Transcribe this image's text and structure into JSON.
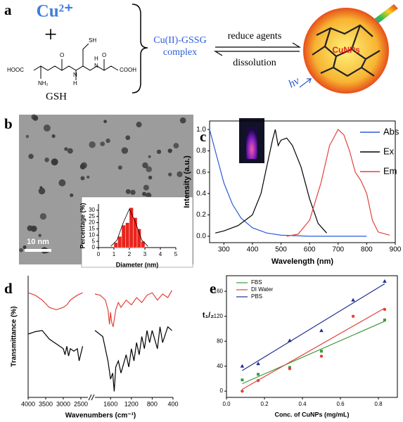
{
  "panel_a": {
    "label": "a",
    "cu": "Cu²⁺",
    "plus": "+",
    "structure_labels": [
      "HOOC",
      "NH₂",
      "SH",
      "O",
      "N",
      "H",
      "H",
      "N",
      "O",
      "COOH"
    ],
    "gsh": "GSH",
    "complex": [
      "Cu(II)-GSSG",
      "complex"
    ],
    "forward": "reduce agents",
    "reverse": "dissolution",
    "particle": "CuNPs",
    "light": "hv"
  },
  "panel_b": {
    "label": "b",
    "scale_bar": "10 nm"
  },
  "chart_data": [
    {
      "type": "histogram",
      "xlabel": "Diameter (nm)",
      "ylabel": "Percentage (%)",
      "bins": [
        1.0,
        1.25,
        1.5,
        1.75,
        2.0,
        2.25,
        2.5,
        2.75,
        3.0
      ],
      "values": [
        4,
        9,
        18,
        20,
        32,
        24,
        15,
        5
      ],
      "color": "#e8241c",
      "fit": {
        "x": [
          0.8,
          1.2,
          1.6,
          2.0,
          2.4,
          2.8,
          3.2
        ],
        "values": [
          1,
          6,
          20,
          31,
          20,
          6,
          1
        ]
      },
      "xlim": [
        0,
        5
      ],
      "ylim": [
        0,
        35
      ],
      "xticks": [
        0,
        1,
        2,
        3,
        4,
        5
      ],
      "yticks": [
        0,
        5,
        10,
        15,
        20,
        25,
        30
      ]
    },
    {
      "type": "line",
      "label": "c",
      "xlabel": "Wavelength (nm)",
      "ylabel": "Intensity (a.u.)",
      "xlim": [
        250,
        900
      ],
      "ylim": [
        -0.06,
        1.08
      ],
      "xticks": [
        300,
        400,
        500,
        600,
        700,
        800,
        900
      ],
      "yticks": [
        {
          "value": 0,
          "label": "0.0"
        },
        0.2,
        0.4,
        0.6,
        0.8,
        {
          "value": 1,
          "label": "1.0"
        }
      ],
      "legend": "upper right",
      "series": [
        {
          "name": "Abs",
          "color": "#2a5bd7",
          "x": [
            250,
            270,
            300,
            330,
            360,
            400,
            450,
            500,
            600,
            700,
            800
          ],
          "values": [
            1.0,
            0.8,
            0.5,
            0.3,
            0.17,
            0.08,
            0.03,
            0.01,
            0,
            0,
            0
          ]
        },
        {
          "name": "Ex",
          "color": "#000000",
          "x": [
            270,
            300,
            350,
            400,
            430,
            450,
            470,
            480,
            490,
            500,
            520,
            540,
            570,
            600,
            630,
            660
          ],
          "values": [
            0.03,
            0.05,
            0.1,
            0.2,
            0.4,
            0.65,
            0.9,
            1.0,
            0.85,
            0.9,
            0.92,
            0.85,
            0.65,
            0.35,
            0.12,
            0.03
          ]
        },
        {
          "name": "Em",
          "color": "#e0423a",
          "x": [
            520,
            560,
            600,
            640,
            670,
            700,
            720,
            740,
            760,
            780,
            800,
            820,
            840,
            880
          ],
          "values": [
            0.0,
            0.02,
            0.15,
            0.5,
            0.85,
            1.0,
            0.95,
            0.8,
            0.6,
            0.52,
            0.4,
            0.15,
            0.04,
            0.01
          ]
        }
      ]
    },
    {
      "type": "line",
      "label": "d",
      "xlabel": "Wavenumbers (cm⁻¹)",
      "ylabel": "Transmittance (%)",
      "xsegments": [
        [
          4000,
          2300
        ],
        [
          1900,
          400
        ]
      ],
      "ylim": [
        0,
        100
      ],
      "xticks": [
        4000,
        3500,
        3000,
        2500,
        1600,
        1200,
        800,
        400
      ],
      "series": [
        {
          "color": "#e0423a",
          "x": [
            4000,
            3800,
            3600,
            3400,
            3200,
            3000,
            2900,
            2800,
            2600,
            2450,
            2100,
            1900,
            1800,
            1700,
            1650,
            1620,
            1600,
            1580,
            1550,
            1500,
            1450,
            1400,
            1300,
            1200,
            1100,
            1000,
            900,
            800,
            700,
            600,
            500,
            420
          ],
          "values": [
            86,
            84,
            80,
            74,
            72,
            74,
            76,
            80,
            84,
            86,
            null,
            85,
            84,
            80,
            72,
            60,
            70,
            62,
            58,
            72,
            78,
            74,
            80,
            76,
            82,
            78,
            84,
            86,
            80,
            85,
            82,
            88
          ]
        },
        {
          "color": "#000000",
          "x": [
            4000,
            3800,
            3600,
            3400,
            3200,
            3000,
            2950,
            2900,
            2850,
            2800,
            2700,
            2600,
            2550,
            2450,
            2100,
            1900,
            1750,
            1650,
            1600,
            1560,
            1530,
            1500,
            1450,
            1400,
            1300,
            1250,
            1200,
            1150,
            1100,
            1050,
            1000,
            950,
            900,
            850,
            800,
            700,
            650,
            600,
            500,
            420
          ],
          "values": [
            52,
            54,
            55,
            48,
            44,
            40,
            35,
            42,
            34,
            40,
            38,
            40,
            30,
            42,
            null,
            55,
            50,
            30,
            15,
            20,
            5,
            25,
            30,
            20,
            35,
            25,
            40,
            30,
            45,
            35,
            50,
            40,
            55,
            45,
            55,
            40,
            58,
            45,
            58,
            55
          ]
        }
      ]
    },
    {
      "type": "scatter",
      "label": "e",
      "xlabel": "Conc. of CuNPs (mg/mL)",
      "ylabel": "t₁/₂",
      "x": [
        0.083,
        0.167,
        0.333,
        0.5,
        0.667,
        0.833
      ],
      "xlim": [
        0,
        0.9
      ],
      "ylim": [
        -10,
        185
      ],
      "xticks": [
        {
          "value": 0,
          "label": "0.0"
        },
        0.2,
        0.4,
        0.6,
        0.8
      ],
      "yticks": [
        0,
        40,
        80,
        120,
        160
      ],
      "legend": "upper left",
      "series": [
        {
          "name": "FBS",
          "color": "#3c9a3c",
          "marker": "square",
          "values": [
            18,
            27,
            38,
            64,
            null,
            114
          ],
          "fit": {
            "x": [
              0.083,
              0.833
            ],
            "values": [
              12,
              112
            ]
          }
        },
        {
          "name": "DI Water",
          "color": "#e0423a",
          "marker": "circle",
          "values": [
            0,
            17,
            36,
            56,
            120,
            131
          ],
          "fit": {
            "x": [
              0.083,
              0.833
            ],
            "values": [
              3,
              133
            ]
          }
        },
        {
          "name": "PBS",
          "color": "#1f2f8f",
          "marker": "triangle",
          "values": [
            40,
            44,
            81,
            97,
            146,
            176
          ],
          "fit": {
            "x": [
              0.083,
              0.833
            ],
            "values": [
              33,
              172
            ]
          }
        }
      ]
    }
  ]
}
